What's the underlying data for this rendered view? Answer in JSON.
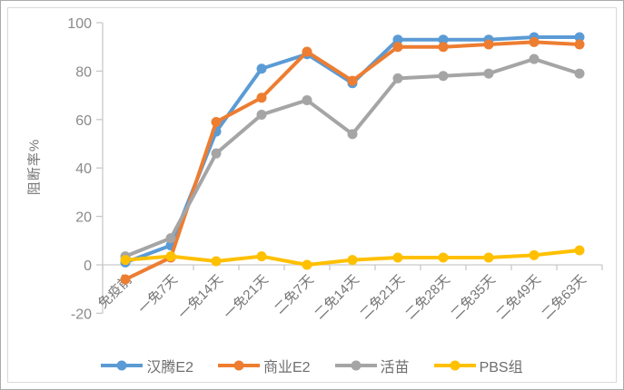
{
  "chart_data": {
    "type": "line",
    "title": "",
    "ylabel": "阻断率%",
    "xlabel": "",
    "ylim": [
      -20,
      100
    ],
    "yticks": [
      -20,
      0,
      20,
      40,
      60,
      80,
      100
    ],
    "grid": "off",
    "legend_position": "bottom",
    "marker": "circle",
    "categories": [
      "免疫前",
      "一免7天",
      "一免14天",
      "一免21天",
      "二免7天",
      "二免14天",
      "二免21天",
      "二免28天",
      "二免35天",
      "二免49天",
      "二免63天"
    ],
    "series": [
      {
        "name": "汉腾E2",
        "color": "#5B9BD5",
        "values": [
          1,
          8,
          55,
          81,
          87,
          75,
          93,
          93,
          93,
          94,
          94
        ]
      },
      {
        "name": "商业E2",
        "color": "#ED7D31",
        "values": [
          -6,
          3,
          59,
          69,
          88,
          76,
          90,
          90,
          91,
          92,
          91
        ]
      },
      {
        "name": "活苗",
        "color": "#A5A5A5",
        "values": [
          3.5,
          11,
          46,
          62,
          68,
          54,
          77,
          78,
          79,
          85,
          79
        ]
      },
      {
        "name": "PBS组",
        "color": "#FFC000",
        "values": [
          2,
          3.5,
          1.5,
          3.5,
          0,
          2,
          3,
          3,
          3,
          4,
          6
        ]
      }
    ],
    "axis_color": "#c9c9c9",
    "text_color": "#767676"
  }
}
